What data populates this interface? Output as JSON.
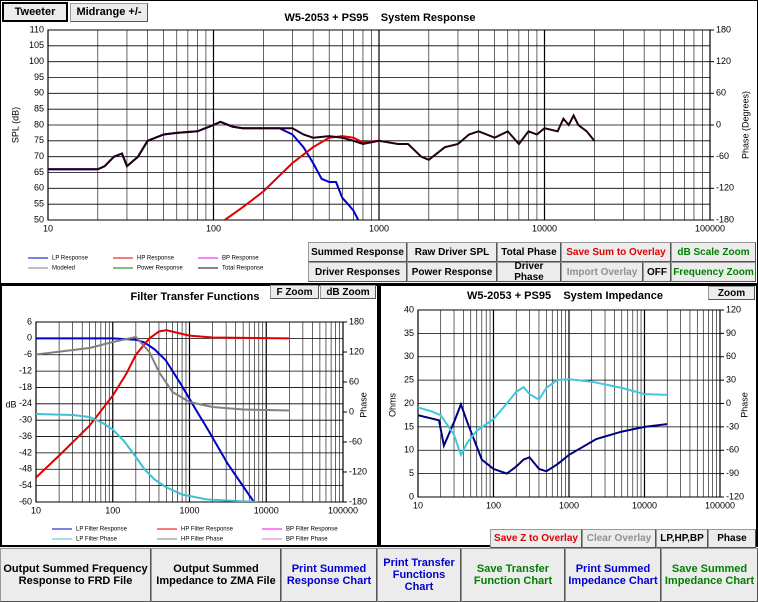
{
  "ui": {
    "tabs": [
      "Tweeter",
      "Midrange +/-"
    ],
    "response_buttons": [
      "Summed Response",
      "Raw Driver SPL",
      "Total Phase",
      "Save Sum to Overlay",
      "dB Scale Zoom",
      "Driver Responses",
      "Power Response",
      "Driver Phase",
      "Import Overlay",
      "OFF",
      "Frequency Zoom"
    ],
    "filter_buttons": [
      "F Zoom",
      "dB Zoom"
    ],
    "impedance_buttons": [
      "Zoom",
      "Save Z to Overlay",
      "Clear Overlay",
      "LP,HP,BP",
      "Phase"
    ],
    "bottom_buttons": [
      "Output Summed Frequency Response to FRD File",
      "Output Summed Impedance to ZMA File",
      "Print Summed Response Chart",
      "Print Transfer Functions Chart",
      "Save Transfer Function Chart",
      "Print Summed Impedance Chart",
      "Save Summed Impedance Chart"
    ]
  },
  "chart_data": [
    {
      "type": "line",
      "title": "W5-2053 + PS95    System Response",
      "ylabel": "SPL (dB)",
      "y2label": "Phase (Degrees)",
      "xscale": "log",
      "xlim": [
        10,
        100000
      ],
      "xticks": [
        10,
        100,
        1000,
        10000,
        100000
      ],
      "ylim": [
        50,
        110
      ],
      "yticks": [
        50,
        55,
        60,
        65,
        70,
        75,
        80,
        85,
        90,
        95,
        100,
        105,
        110
      ],
      "y2lim": [
        -180,
        180
      ],
      "y2ticks": [
        -180,
        -120,
        -60,
        0,
        60,
        120,
        180
      ],
      "grid": true,
      "series": [
        {
          "name": "LP Response",
          "color": "#0000c8",
          "x": [
            10,
            20,
            22,
            25,
            28,
            30,
            35,
            40,
            50,
            60,
            80,
            100,
            110,
            130,
            150,
            200,
            250,
            300,
            350,
            400,
            450,
            500,
            550,
            600,
            650,
            700,
            750
          ],
          "values": [
            66,
            66,
            67,
            70,
            71,
            67,
            70,
            75,
            77,
            77.5,
            78,
            80,
            81,
            79.5,
            79,
            79,
            79,
            77,
            73,
            68,
            63,
            62,
            62,
            57,
            55,
            53,
            50
          ]
        },
        {
          "name": "HP Response",
          "color": "#e00000",
          "x": [
            117,
            150,
            200,
            250,
            300,
            400,
            500,
            600,
            700,
            800,
            1000
          ],
          "values": [
            50,
            54,
            59,
            64,
            68,
            73,
            76,
            76.5,
            76,
            74.5,
            75
          ]
        },
        {
          "name": "BP Response",
          "color": "#ff00ff",
          "x": [],
          "values": []
        },
        {
          "name": "Modeled",
          "color": "#808080",
          "x": [],
          "values": []
        },
        {
          "name": "Power Response",
          "color": "#008000",
          "x": [],
          "values": []
        },
        {
          "name": "Total Response",
          "color": "#200010",
          "x": [
            10,
            20,
            22,
            25,
            28,
            30,
            35,
            40,
            50,
            60,
            80,
            100,
            110,
            130,
            150,
            200,
            300,
            350,
            400,
            500,
            600,
            700,
            800,
            1000,
            1300,
            1500,
            1800,
            2000,
            2500,
            3000,
            3500,
            4000,
            5000,
            6000,
            7000,
            8000,
            9000,
            10000,
            12000,
            13000,
            14000,
            15000,
            16000,
            18000,
            20000
          ],
          "values": [
            66,
            66,
            67,
            70,
            71,
            67,
            70,
            75,
            77,
            77.5,
            78,
            80,
            81,
            79.5,
            79,
            79,
            79,
            77,
            76,
            76.5,
            76,
            75,
            74,
            75,
            74,
            74,
            70,
            69,
            73,
            74,
            77,
            78,
            76,
            78,
            74,
            78,
            77,
            79,
            78,
            82,
            80,
            83,
            80,
            78,
            75
          ]
        }
      ]
    },
    {
      "type": "line",
      "title": "Filter Transfer Functions",
      "ylabel": "dB",
      "y2label": "Phase",
      "xscale": "log",
      "xlim": [
        10,
        100000
      ],
      "xticks": [
        10,
        100,
        1000,
        10000,
        100000
      ],
      "ylim": [
        -60,
        6
      ],
      "yticks": [
        -60,
        -54,
        -48,
        -42,
        -36,
        -30,
        -24,
        -18,
        -12,
        -6,
        0,
        6
      ],
      "y2lim": [
        -180,
        180
      ],
      "y2ticks": [
        -180,
        -120,
        -60,
        0,
        60,
        120,
        180
      ],
      "grid": true,
      "series": [
        {
          "name": "LP Filter Response",
          "color": "#0000c8",
          "x": [
            10,
            100,
            200,
            260,
            350,
            490,
            780,
            1200,
            1700,
            3150,
            6900
          ],
          "values": [
            0,
            0,
            -0.5,
            -1.5,
            -4,
            -8,
            -17,
            -26,
            -33,
            -46,
            -60
          ]
        },
        {
          "name": "HP Filter Response",
          "color": "#e00000",
          "x": [
            10,
            20,
            50,
            100,
            150,
            200,
            300,
            400,
            500,
            700,
            1000,
            2000,
            20000
          ],
          "values": [
            -51,
            -43,
            -32,
            -21,
            -13,
            -6,
            0,
            2.5,
            3,
            2,
            1,
            0.3,
            0
          ]
        },
        {
          "name": "BP Filter Response",
          "color": "#ff00ff",
          "x": [],
          "values": []
        },
        {
          "name": "LP Filter Phase",
          "color": "#40c0d0",
          "axis": "y2",
          "x": [
            10,
            30,
            50,
            74,
            100,
            140,
            200,
            260,
            350,
            490,
            800,
            1700,
            8000
          ],
          "values": [
            -4,
            -6,
            -10,
            -22,
            -35,
            -58,
            -90,
            -115,
            -135,
            -150,
            -165,
            -175,
            -180
          ]
        },
        {
          "name": "HP Filter Phase",
          "color": "#808080",
          "axis": "y2",
          "x": [
            10,
            50,
            100,
            200,
            300,
            400,
            600,
            1000,
            2000,
            5000,
            20000
          ],
          "values": [
            115,
            128,
            140,
            150,
            120,
            80,
            40,
            20,
            10,
            5,
            3
          ]
        },
        {
          "name": "BP Filter Phase",
          "color": "#c080c0",
          "axis": "y2",
          "x": [],
          "values": []
        }
      ]
    },
    {
      "type": "line",
      "title": "W5-2053 + PS95    System Impedance",
      "ylabel": "Ohms",
      "y2label": "Phase",
      "xscale": "log",
      "xlim": [
        10,
        100000
      ],
      "xticks": [
        10,
        100,
        1000,
        10000,
        100000
      ],
      "ylim": [
        0,
        40
      ],
      "yticks": [
        0,
        5,
        10,
        15,
        20,
        25,
        30,
        35,
        40
      ],
      "y2lim": [
        -120,
        120
      ],
      "y2ticks": [
        -120,
        -90,
        -60,
        -30,
        0,
        30,
        60,
        90,
        120
      ],
      "grid": true,
      "series": [
        {
          "color": "#000080",
          "x": [
            10,
            19,
            22,
            30,
            37,
            45,
            70,
            100,
            150,
            200,
            250,
            300,
            400,
            500,
            700,
            1000,
            2300,
            5000,
            10000,
            20000
          ],
          "values": [
            17.5,
            16.4,
            11,
            16,
            19.8,
            16,
            8,
            6,
            5,
            6.5,
            8,
            8.5,
            6,
            5.5,
            7,
            9,
            12.4,
            14,
            15,
            15.6
          ]
        },
        {
          "color": "#40c8e0",
          "axis": "y2",
          "x": [
            10,
            15,
            20,
            30,
            37,
            45,
            60,
            100,
            150,
            200,
            250,
            300,
            400,
            500,
            700,
            1000,
            2000,
            5000,
            10000,
            20000
          ],
          "values": [
            -5,
            -10,
            -15,
            -40,
            -66,
            -50,
            -35,
            -20,
            0,
            15,
            21,
            12,
            5,
            20,
            30,
            31,
            28,
            20,
            12,
            11
          ]
        }
      ]
    }
  ]
}
